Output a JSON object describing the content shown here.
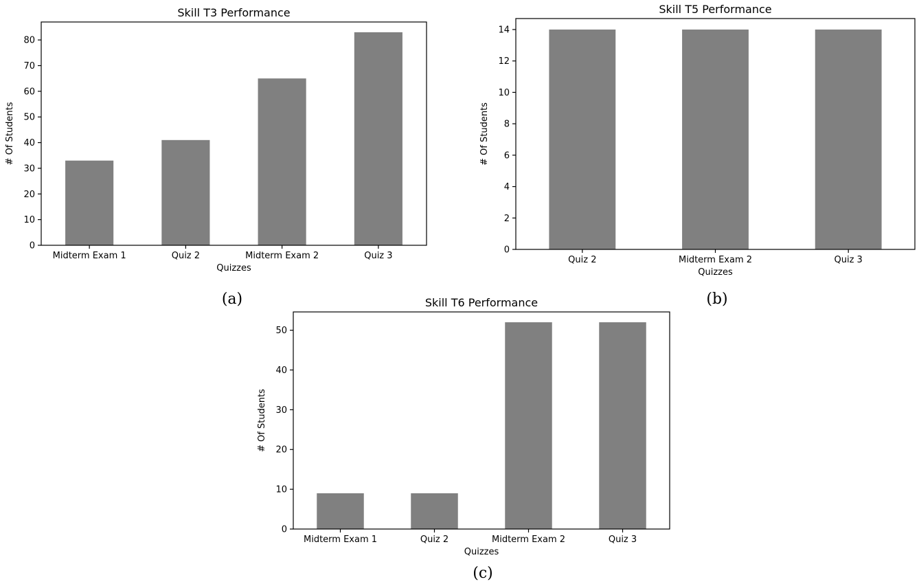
{
  "chart_data": [
    {
      "type": "bar",
      "title": "Skill T3 Performance",
      "xlabel": "Quizzes",
      "ylabel": "# Of Students",
      "categories": [
        "Midterm Exam 1",
        "Quiz 2",
        "Midterm Exam 2",
        "Quiz 3"
      ],
      "values": [
        33,
        41,
        65,
        83
      ],
      "ylim": [
        0,
        87
      ],
      "yticks": [
        0,
        10,
        20,
        30,
        40,
        50,
        60,
        70,
        80
      ],
      "grid": false,
      "bar_color": "#808080",
      "caption": "(a)"
    },
    {
      "type": "bar",
      "title": "Skill T5 Performance",
      "xlabel": "Quizzes",
      "ylabel": "# Of Students",
      "categories": [
        "Quiz 2",
        "Midterm Exam 2",
        "Quiz 3"
      ],
      "values": [
        14,
        14,
        14
      ],
      "ylim": [
        0,
        14.7
      ],
      "yticks": [
        0,
        2,
        4,
        6,
        8,
        10,
        12,
        14
      ],
      "grid": false,
      "bar_color": "#808080",
      "caption": "(b)"
    },
    {
      "type": "bar",
      "title": "Skill T6 Performance",
      "xlabel": "Quizzes",
      "ylabel": "# Of Students",
      "categories": [
        "Midterm Exam 1",
        "Quiz 2",
        "Midterm Exam 2",
        "Quiz 3"
      ],
      "values": [
        9,
        9,
        52,
        52
      ],
      "ylim": [
        0,
        54.6
      ],
      "yticks": [
        0,
        10,
        20,
        30,
        40,
        50
      ],
      "grid": false,
      "bar_color": "#808080",
      "caption": "(c)"
    }
  ]
}
